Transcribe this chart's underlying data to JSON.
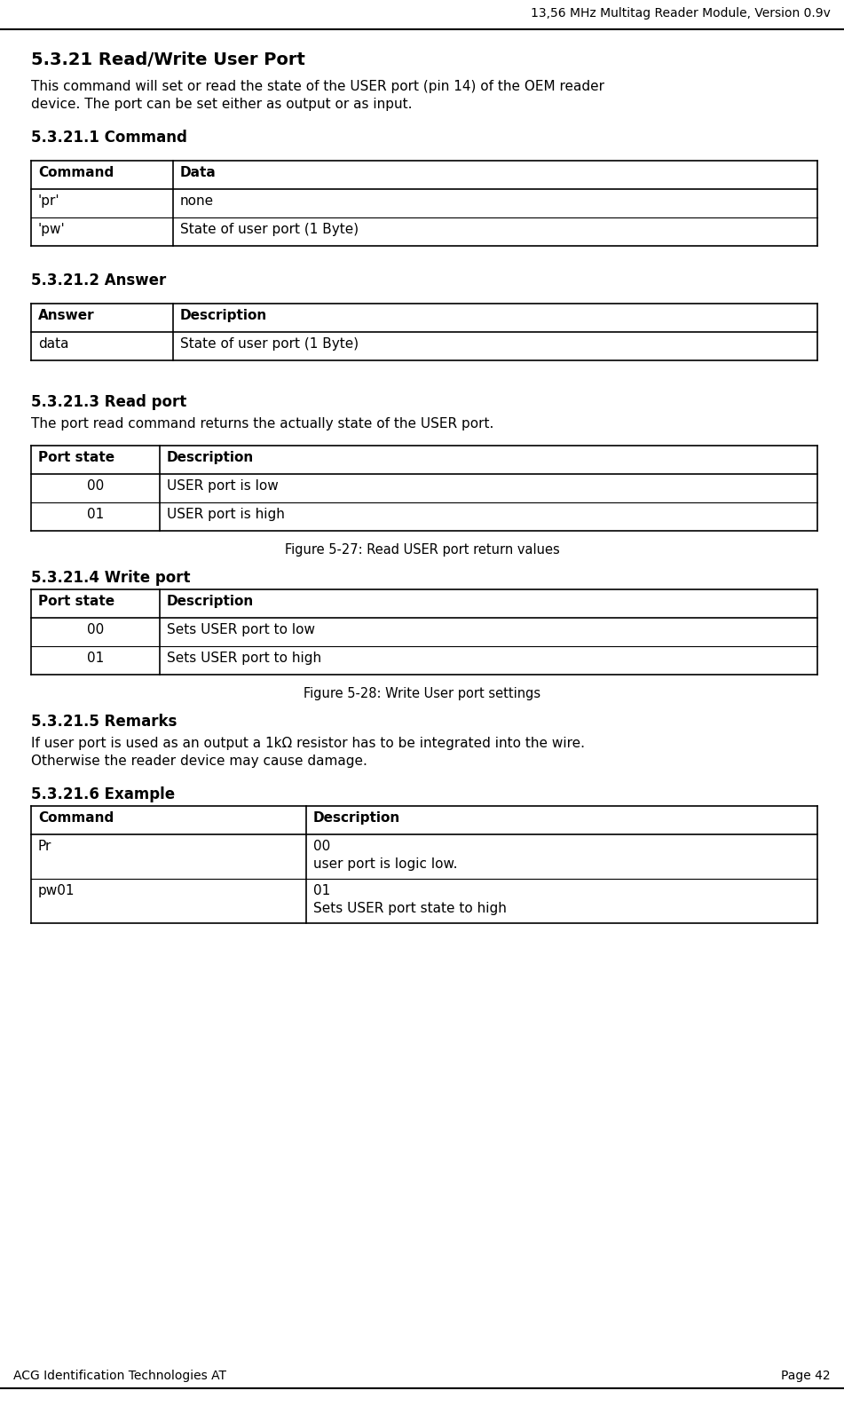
{
  "header_text": "13,56 MHz Multitag Reader Module, Version 0.9v",
  "footer_left": "ACG Identification Technologies AT",
  "footer_right": "Page 42",
  "section_title": "5.3.21 Read/Write User Port",
  "section_body_line1": "This command will set or read the state of the USER port (pin 14) of the OEM reader",
  "section_body_line2": "device. The port can be set either as output or as input.",
  "sub1_title": "5.3.21.1 Command",
  "sub2_title": "5.3.21.2 Answer",
  "sub3_title": "5.3.21.3 Read port",
  "sub3_body": "The port read command returns the actually state of the USER port.",
  "sub4_title": "5.3.21.4 Write port",
  "sub5_title": "5.3.21.5 Remarks",
  "sub5_body_line1": "If user port is used as an output a 1kΩ resistor has to be integrated into the wire.",
  "sub5_body_line2": "Otherwise the reader device may cause damage.",
  "sub6_title": "5.3.21.6 Example",
  "fig1_caption": "Figure 5-27: Read USER port return values",
  "fig2_caption": "Figure 5-28: Write User port settings",
  "cmd_table_headers": [
    "Command",
    "Data"
  ],
  "cmd_table_rows": [
    [
      "'pr'",
      "none"
    ],
    [
      "'pw'",
      "State of user port (1 Byte)"
    ]
  ],
  "ans_table_headers": [
    "Answer",
    "Description"
  ],
  "ans_table_rows": [
    [
      "data",
      "State of user port (1 Byte)"
    ]
  ],
  "read_table_headers": [
    "Port state",
    "Description"
  ],
  "read_table_rows": [
    [
      "00",
      "USER port is low"
    ],
    [
      "01",
      "USER port is high"
    ]
  ],
  "write_table_headers": [
    "Port state",
    "Description"
  ],
  "write_table_rows": [
    [
      "00",
      "Sets USER port to low"
    ],
    [
      "01",
      "Sets USER port to high"
    ]
  ],
  "example_table_headers": [
    "Command",
    "Description"
  ],
  "example_table_rows": [
    [
      "Pr",
      "00\nuser port is logic low."
    ],
    [
      "pw01",
      "01\nSets USER port state to high"
    ]
  ],
  "bg_color": "#ffffff",
  "text_color": "#000000"
}
